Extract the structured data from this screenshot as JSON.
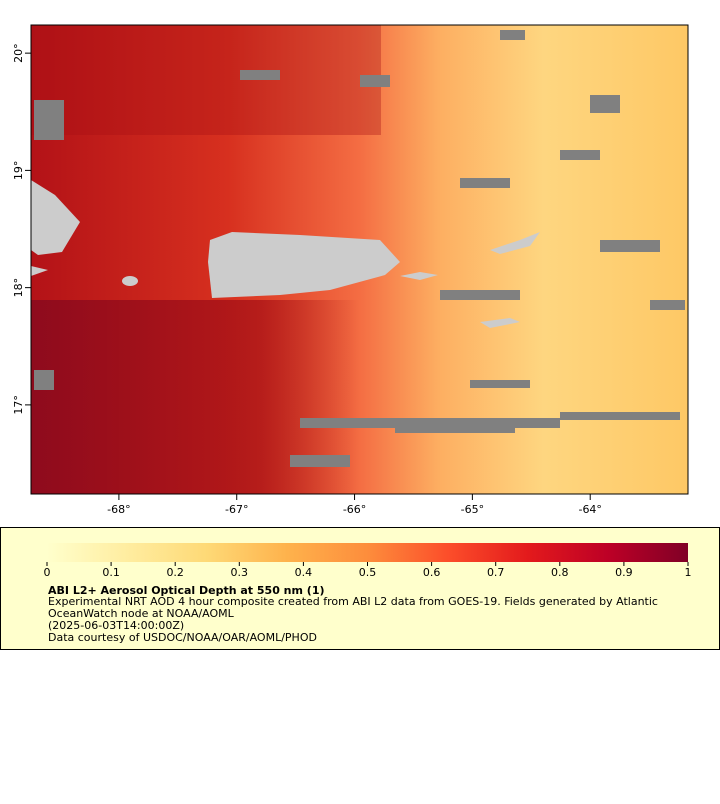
{
  "map": {
    "xlim": [
      -68.746,
      -63.17
    ],
    "ylim": [
      16.24,
      20.24
    ],
    "x_ticks": [
      {
        "value": -68,
        "label": "-68°"
      },
      {
        "value": -67,
        "label": "-67°"
      },
      {
        "value": -66,
        "label": "-66°"
      },
      {
        "value": -65,
        "label": "-65°"
      },
      {
        "value": -64,
        "label": "-64°"
      }
    ],
    "y_ticks": [
      {
        "value": 17,
        "label": "17°"
      },
      {
        "value": 18,
        "label": "18°"
      },
      {
        "value": 19,
        "label": "19°"
      },
      {
        "value": 20,
        "label": "20°"
      }
    ]
  },
  "colorbar": {
    "range": [
      0,
      1
    ],
    "ticks": [
      0,
      0.1,
      0.2,
      0.3,
      0.4,
      0.5,
      0.6,
      0.7,
      0.8,
      0.9,
      1
    ],
    "colors": [
      "#ffffcc",
      "#ffeda0",
      "#fed976",
      "#feb24c",
      "#fd8d3c",
      "#fc4e2a",
      "#e31a1c",
      "#bd0026",
      "#800026"
    ]
  },
  "legend": {
    "title": "ABI L2+ Aerosol Optical Depth at 550 nm (1)",
    "lines": [
      "Experimental NRT AOD 4 hour composite created from ABI L2 data from GOES-19. Fields generated by Atlantic",
      "OceanWatch node at NOAA/AOML",
      "(2025-06-03T14:00:00Z)",
      "Data courtesy of USDOC/NOAA/OAR/AOML/PHOD"
    ]
  }
}
